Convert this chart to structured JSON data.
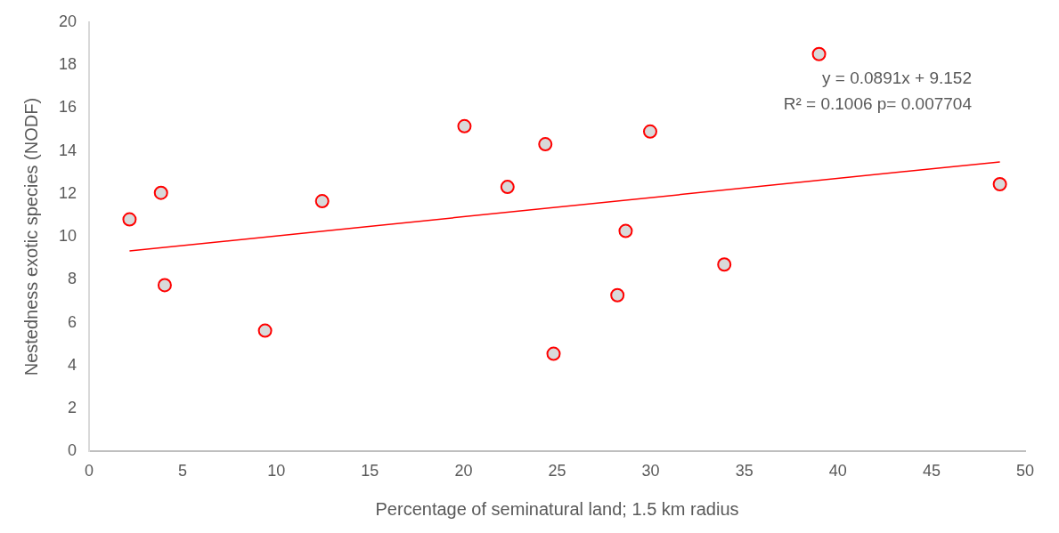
{
  "chart_data": {
    "type": "scatter",
    "xlabel": "Percentage of seminatural land; 1.5 km radius",
    "ylabel": "Nestedness exotic species (NODF)",
    "xlim": [
      0,
      50
    ],
    "xticks": [
      0,
      5,
      10,
      15,
      20,
      25,
      30,
      35,
      40,
      45,
      50
    ],
    "ylim": [
      0,
      20
    ],
    "yticks": [
      0,
      2,
      4,
      6,
      8,
      10,
      12,
      14,
      16,
      18,
      20
    ],
    "marker": "circle",
    "legend": false,
    "grid": false,
    "annotations": [
      "y = 0.0891x + 9.152",
      "R² = 0.1006 p= 0.007704"
    ],
    "series": [
      {
        "type": "scatter",
        "color": "#ff0000",
        "x": [
          2.16,
          3.84,
          4.04,
          9.4,
          12.45,
          20.05,
          22.35,
          24.37,
          24.81,
          28.22,
          28.66,
          29.97,
          33.93,
          38.99,
          48.65
        ],
        "values": [
          10.81,
          12.05,
          7.75,
          5.63,
          11.66,
          15.15,
          12.32,
          14.31,
          4.55,
          7.28,
          10.27,
          14.9,
          8.71,
          18.51,
          12.45
        ]
      },
      {
        "type": "line",
        "color": "#ff0000",
        "marker": "none",
        "line_style": "solid",
        "x": [
          2.16,
          48.65
        ],
        "values": [
          9.34,
          13.49
        ]
      }
    ]
  }
}
